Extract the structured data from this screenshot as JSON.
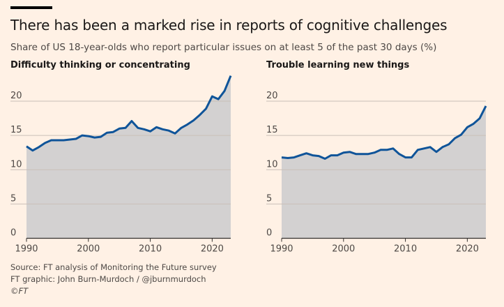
{
  "title": "There has been a marked rise in reports of cognitive challenges",
  "subtitle": "Share of US 18-year-olds who report particular issues on at least 5 of the past 30 days (%)",
  "footer": {
    "source": "Source: FT analysis of Monitoring the Future survey",
    "credit": "FT graphic: John Burn-Murdoch / @jburnmurdoch",
    "copyright": "©FT"
  },
  "colors": {
    "background": "#fff1e5",
    "line": "#0f5499",
    "area": "#d3d1d1",
    "grid": "#c9c0b8"
  },
  "chart_data": [
    {
      "type": "area",
      "title": "Difficulty thinking or concentrating",
      "xlabel": "",
      "ylabel": "%",
      "xlim": [
        1990,
        2023
      ],
      "ylim": [
        0,
        24
      ],
      "xticks": [
        1990,
        2000,
        2010,
        2020
      ],
      "yticks": [
        0,
        5,
        10,
        15,
        20
      ],
      "grid": true,
      "x": [
        1990,
        1991,
        1992,
        1993,
        1994,
        1995,
        1996,
        1997,
        1998,
        1999,
        2000,
        2001,
        2002,
        2003,
        2004,
        2005,
        2006,
        2007,
        2008,
        2009,
        2010,
        2011,
        2012,
        2013,
        2014,
        2015,
        2016,
        2017,
        2018,
        2019,
        2020,
        2021,
        2022,
        2023
      ],
      "values": [
        13.4,
        12.8,
        13.3,
        13.9,
        14.3,
        14.3,
        14.3,
        14.4,
        14.5,
        15.0,
        14.9,
        14.7,
        14.8,
        15.4,
        15.5,
        16.0,
        16.1,
        17.1,
        16.1,
        15.9,
        15.6,
        16.2,
        15.9,
        15.7,
        15.3,
        16.1,
        16.6,
        17.2,
        18.0,
        18.9,
        20.7,
        20.3,
        21.5,
        23.7
      ]
    },
    {
      "type": "area",
      "title": "Trouble learning new things",
      "xlabel": "",
      "ylabel": "%",
      "xlim": [
        1990,
        2023
      ],
      "ylim": [
        0,
        24
      ],
      "xticks": [
        1990,
        2000,
        2010,
        2020
      ],
      "yticks": [
        0,
        5,
        10,
        15,
        20
      ],
      "grid": true,
      "x": [
        1990,
        1991,
        1992,
        1993,
        1994,
        1995,
        1996,
        1997,
        1998,
        1999,
        2000,
        2001,
        2002,
        2003,
        2004,
        2005,
        2006,
        2007,
        2008,
        2009,
        2010,
        2011,
        2012,
        2013,
        2014,
        2015,
        2016,
        2017,
        2018,
        2019,
        2020,
        2021,
        2022,
        2023
      ],
      "values": [
        11.8,
        11.7,
        11.8,
        12.1,
        12.4,
        12.1,
        12.0,
        11.6,
        12.1,
        12.1,
        12.5,
        12.6,
        12.3,
        12.3,
        12.3,
        12.5,
        12.9,
        12.9,
        13.1,
        12.3,
        11.8,
        11.8,
        12.9,
        13.1,
        13.3,
        12.6,
        13.3,
        13.7,
        14.6,
        15.1,
        16.2,
        16.7,
        17.5,
        19.3
      ]
    }
  ]
}
